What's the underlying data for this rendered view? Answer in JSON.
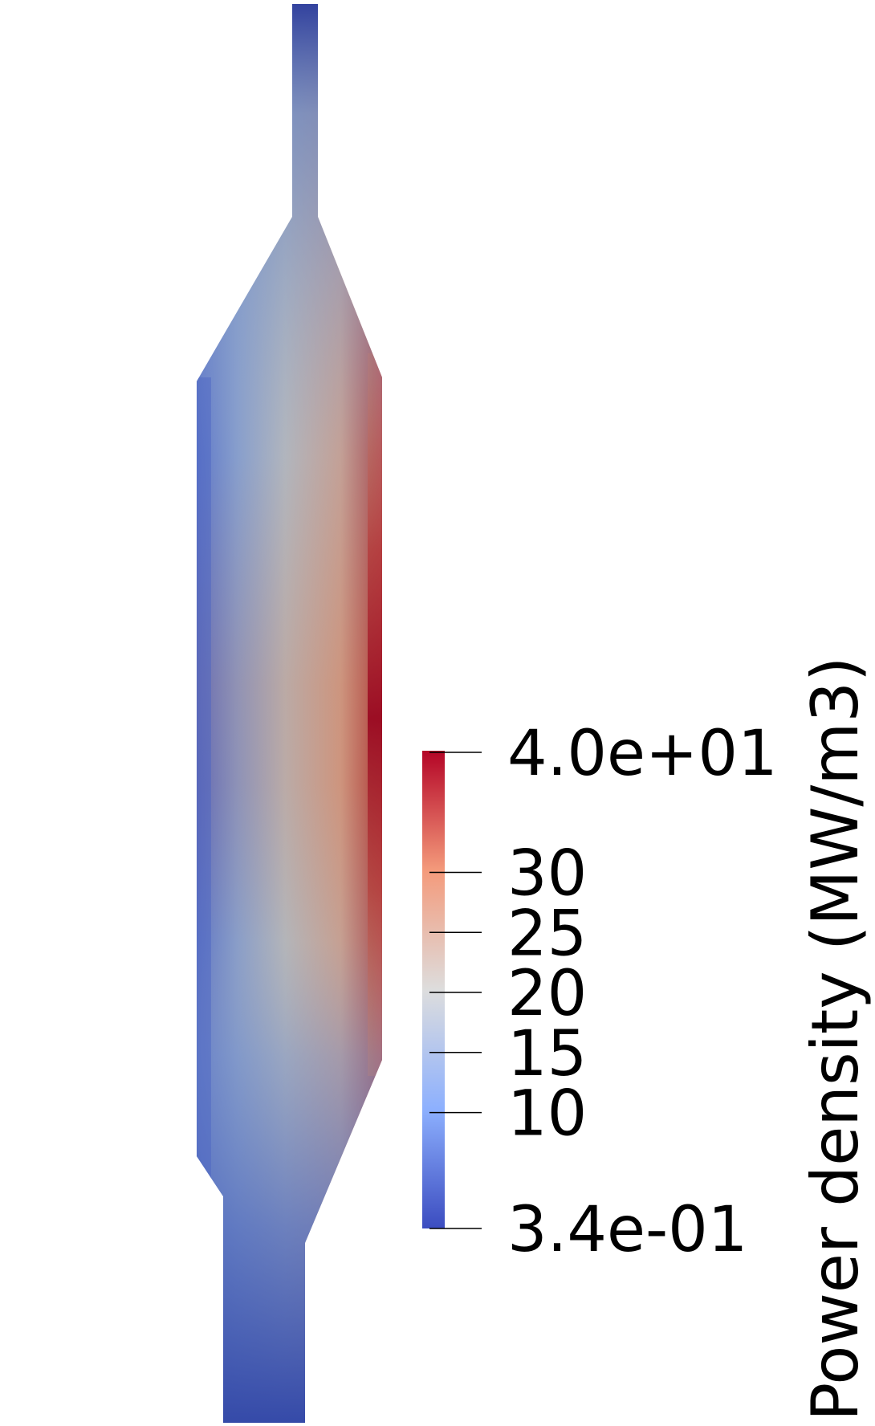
{
  "field": {
    "quantity": "Power density",
    "unit": "MW/m3",
    "min_value": 0.34,
    "max_value": 40.0,
    "colormap": [
      "#3b4cc0",
      "#8db0fe",
      "#dddddd",
      "#f49a7b",
      "#b40426"
    ],
    "outline_color": "#b40426"
  },
  "colorbar": {
    "title": "Power density (MW/m3)",
    "range": [
      0.34,
      40.0
    ],
    "ticks": [
      {
        "value": 40.0,
        "label": "4.0e+01"
      },
      {
        "value": 30,
        "label": "30"
      },
      {
        "value": 25,
        "label": "25"
      },
      {
        "value": 20,
        "label": "20"
      },
      {
        "value": 15,
        "label": "15"
      },
      {
        "value": 10,
        "label": "10"
      },
      {
        "value": 0.34,
        "label": "3.4e-01"
      }
    ]
  }
}
